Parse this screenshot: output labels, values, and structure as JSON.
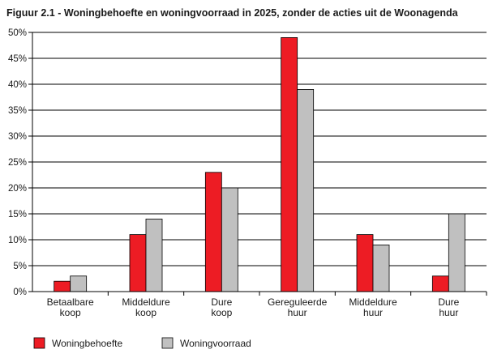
{
  "title": "Figuur 2.1 - Woningbehoefte en woningvoorraad in 2025, zonder de acties uit de Woonagenda",
  "chart_data": {
    "type": "bar",
    "title": "Figuur 2.1 - Woningbehoefte en woningvoorraad in 2025, zonder de acties uit de Woonagenda",
    "xlabel": "",
    "ylabel": "",
    "ylim": [
      0,
      50
    ],
    "yticks": [
      "0%",
      "5%",
      "10%",
      "15%",
      "20%",
      "25%",
      "30%",
      "35%",
      "40%",
      "45%",
      "50%"
    ],
    "grid": "horizontal",
    "legend_position": "bottom",
    "categories": [
      [
        "Betaalbare",
        "koop"
      ],
      [
        "Middeldure",
        "koop"
      ],
      [
        "Dure",
        "koop"
      ],
      [
        "Gereguleerde",
        "huur"
      ],
      [
        "Middeldure",
        "huur"
      ],
      [
        "Dure",
        "huur"
      ]
    ],
    "series": [
      {
        "name": "Woningbehoefte",
        "color": "#ed1c24",
        "values": [
          2,
          11,
          23,
          49,
          11,
          3
        ]
      },
      {
        "name": "Woningvoorraad",
        "color": "#c0c0c0",
        "values": [
          3,
          14,
          20,
          39,
          9,
          15
        ]
      }
    ]
  }
}
